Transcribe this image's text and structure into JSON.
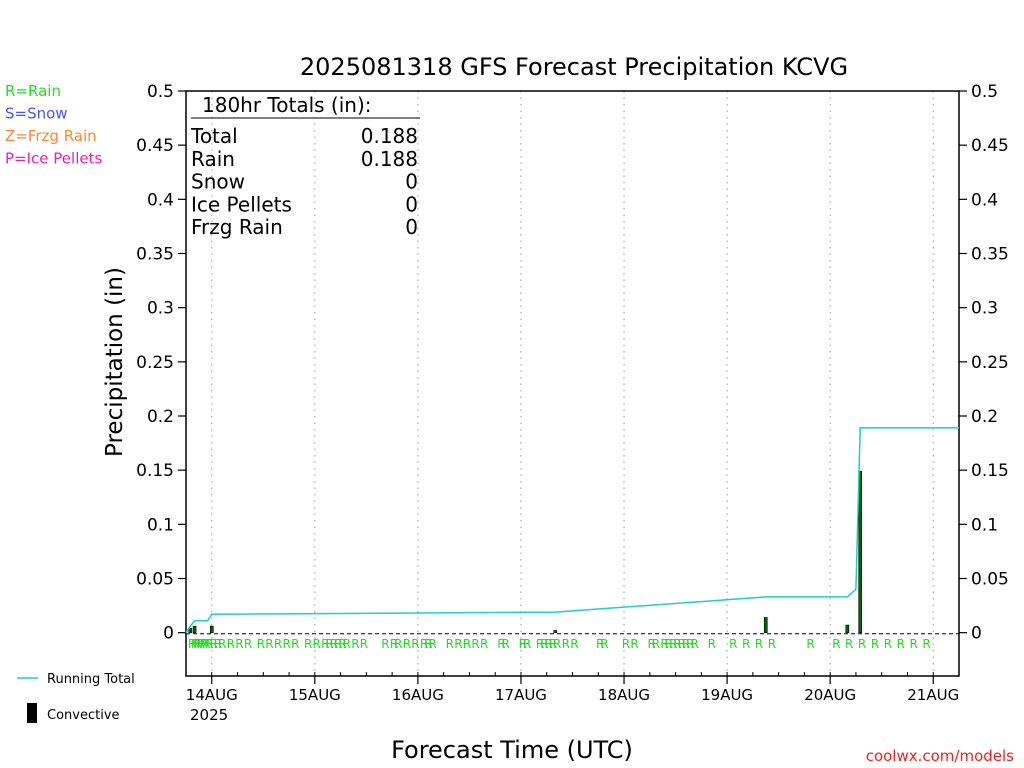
{
  "colors": {
    "rain": "#22dd22",
    "snow": "#4455ff",
    "frzg_rain": "#ff8833",
    "ice_pellets": "#ee22aa",
    "running_total": "#22cccc",
    "convective": "#000000",
    "bar": "#006600",
    "credit": "#ee2222"
  },
  "legend_left": [
    {
      "text": "R=Rain",
      "color_key": "rain"
    },
    {
      "text": "S=Snow",
      "color_key": "snow"
    },
    {
      "text": "Z=Frzg Rain",
      "color_key": "frzg_rain"
    },
    {
      "text": "P=Ice Pellets",
      "color_key": "ice_pellets"
    }
  ],
  "legend_bottom": {
    "running_total": "Running Total",
    "convective": "Convective"
  },
  "credit": "coolwx.com/models",
  "totals_box": {
    "header": "180hr Totals (in):",
    "rows": [
      {
        "label": "Total",
        "value": "0.188"
      },
      {
        "label": "Rain",
        "value": "0.188"
      },
      {
        "label": "Snow",
        "value": "0"
      },
      {
        "label": "Ice Pellets",
        "value": "0"
      },
      {
        "label": "Frzg Rain",
        "value": "0"
      }
    ]
  },
  "chart_data": {
    "type": "bar",
    "title": "2025081318 GFS Forecast Precipitation KCVG",
    "xlabel": "Forecast Time (UTC)",
    "ylabel": "Precipitation (in)",
    "year_label": "2025",
    "x_units": "forecast hour from 2025-08-13 18Z",
    "xlim": [
      0,
      180
    ],
    "ylim": [
      -0.04,
      0.5
    ],
    "y_ticks": [
      0,
      0.05,
      0.1,
      0.15,
      0.2,
      0.25,
      0.3,
      0.35,
      0.4,
      0.45,
      0.5
    ],
    "y_tick_labels": [
      "0",
      "0.05",
      "0.1",
      "0.15",
      "0.2",
      "0.25",
      "0.3",
      "0.35",
      "0.4",
      "0.45",
      "0.5"
    ],
    "x_ticks": [
      {
        "hour": 6,
        "label": "14AUG"
      },
      {
        "hour": 30,
        "label": "15AUG"
      },
      {
        "hour": 54,
        "label": "16AUG"
      },
      {
        "hour": 78,
        "label": "17AUG"
      },
      {
        "hour": 102,
        "label": "18AUG"
      },
      {
        "hour": 126,
        "label": "19AUG"
      },
      {
        "hour": 150,
        "label": "20AUG"
      },
      {
        "hour": 174,
        "label": "21AUG"
      }
    ],
    "grid": "vertical dotted at day boundaries",
    "series": [
      {
        "name": "Convective",
        "kind": "bars",
        "x": [
          1,
          2,
          6,
          86,
          135,
          154,
          157
        ],
        "values": [
          0.004,
          0.006,
          0.006,
          0.002,
          0.014,
          0.007,
          0.149
        ]
      },
      {
        "name": "Running Total",
        "kind": "step_line",
        "x": [
          0,
          1,
          2,
          5,
          6,
          86,
          135,
          154,
          156,
          157,
          180
        ],
        "values": [
          0,
          0.006,
          0.011,
          0.011,
          0.017,
          0.019,
          0.033,
          0.033,
          0.04,
          0.189,
          0.189
        ]
      }
    ],
    "ptype_markers": {
      "symbol": "R",
      "color_key": "rain",
      "hours": [
        0,
        0.7,
        1.3,
        2,
        2.7,
        3.3,
        4,
        5,
        6,
        7,
        9,
        11,
        13,
        16,
        18,
        20,
        22,
        24,
        27,
        29,
        31,
        32,
        33,
        34,
        35,
        36,
        38,
        40,
        45,
        47,
        48,
        50,
        52,
        54,
        55,
        56,
        60,
        62,
        64,
        66,
        68,
        72,
        73,
        77,
        78,
        81,
        82,
        83,
        84,
        85,
        87,
        89,
        95,
        96,
        101,
        103,
        107,
        108,
        110,
        111,
        112,
        113,
        114,
        115,
        116,
        117,
        121,
        126,
        129,
        132,
        135,
        144,
        150,
        153,
        156,
        159,
        162,
        165,
        168,
        171
      ]
    }
  }
}
